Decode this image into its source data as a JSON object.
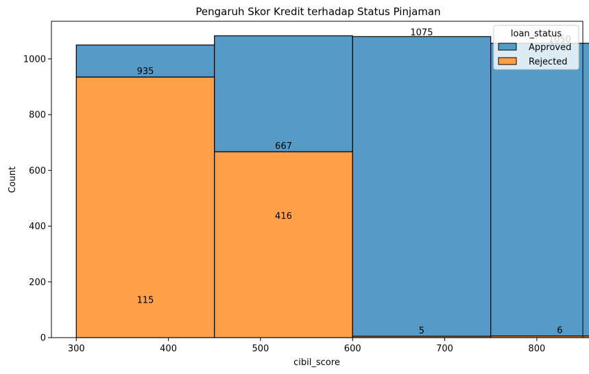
{
  "chart_data": {
    "type": "bar",
    "stacked": true,
    "title": "Pengaruh Skor Kredit terhadap Status Pinjaman",
    "xlabel": "cibil_score",
    "ylabel": "Count",
    "xlim": [
      273,
      850
    ],
    "ylim": [
      0,
      1135
    ],
    "xticks": [
      300,
      400,
      500,
      600,
      700,
      800,
      900
    ],
    "yticks": [
      0,
      200,
      400,
      600,
      800,
      1000
    ],
    "bin_edges": [
      300,
      450,
      600,
      750,
      900
    ],
    "series": [
      {
        "name": "Rejected",
        "color": "#ff9f4a",
        "values": [
          935,
          667,
          5,
          6
        ]
      },
      {
        "name": "Approved",
        "color": "#569ac8",
        "values": [
          115,
          416,
          1075,
          1050
        ]
      }
    ],
    "data_labels": [
      {
        "text": "935",
        "x": 375,
        "y": 935
      },
      {
        "text": "115",
        "x": 375,
        "y": 115
      },
      {
        "text": "667",
        "x": 525,
        "y": 667
      },
      {
        "text": "416",
        "x": 525,
        "y": 416
      },
      {
        "text": "1075",
        "x": 675,
        "y": 1075
      },
      {
        "text": "5",
        "x": 675,
        "y": 5
      },
      {
        "text": "1050",
        "x": 825,
        "y": 1050
      },
      {
        "text": "6",
        "x": 825,
        "y": 6
      }
    ],
    "legend": {
      "title": "loan_status",
      "position": "top-right",
      "entries": [
        {
          "label": "Approved",
          "color": "#569ac8"
        },
        {
          "label": "Rejected",
          "color": "#ff9f4a"
        }
      ]
    },
    "grid": false
  }
}
